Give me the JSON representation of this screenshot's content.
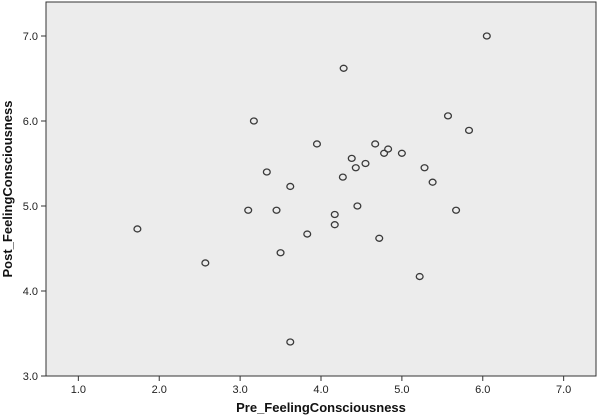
{
  "chart_data": {
    "type": "scatter",
    "title": "",
    "xlabel": "Pre_FeelingConsciousness",
    "ylabel": "Post_FeelingConsciousness",
    "xlim": [
      0.6,
      7.4
    ],
    "ylim": [
      3.0,
      7.4
    ],
    "xticks": [
      "1.0",
      "2.0",
      "3.0",
      "4.0",
      "5.0",
      "6.0",
      "7.0"
    ],
    "xtick_values": [
      1,
      2,
      3,
      4,
      5,
      6,
      7
    ],
    "yticks": [
      "3.0",
      "4.0",
      "5.0",
      "6.0",
      "7.0"
    ],
    "ytick_values": [
      3,
      4,
      5,
      6,
      7
    ],
    "grid": false,
    "legend": "none",
    "background_color": "#ececec",
    "marker_color": "#3a3a3a",
    "points": [
      {
        "x": 1.73,
        "y": 4.73
      },
      {
        "x": 2.57,
        "y": 4.33
      },
      {
        "x": 3.1,
        "y": 4.95
      },
      {
        "x": 3.17,
        "y": 6.0
      },
      {
        "x": 3.33,
        "y": 5.4
      },
      {
        "x": 3.45,
        "y": 4.95
      },
      {
        "x": 3.5,
        "y": 4.45
      },
      {
        "x": 3.62,
        "y": 5.23
      },
      {
        "x": 3.62,
        "y": 3.4
      },
      {
        "x": 3.83,
        "y": 4.67
      },
      {
        "x": 3.95,
        "y": 5.73
      },
      {
        "x": 4.17,
        "y": 4.9
      },
      {
        "x": 4.17,
        "y": 4.78
      },
      {
        "x": 4.27,
        "y": 5.34
      },
      {
        "x": 4.28,
        "y": 6.62
      },
      {
        "x": 4.38,
        "y": 5.56
      },
      {
        "x": 4.43,
        "y": 5.45
      },
      {
        "x": 4.45,
        "y": 5.0
      },
      {
        "x": 4.55,
        "y": 5.5
      },
      {
        "x": 4.67,
        "y": 5.73
      },
      {
        "x": 4.72,
        "y": 4.62
      },
      {
        "x": 4.78,
        "y": 5.62
      },
      {
        "x": 4.83,
        "y": 5.67
      },
      {
        "x": 5.0,
        "y": 5.62
      },
      {
        "x": 5.22,
        "y": 4.17
      },
      {
        "x": 5.28,
        "y": 5.45
      },
      {
        "x": 5.38,
        "y": 5.28
      },
      {
        "x": 5.57,
        "y": 6.06
      },
      {
        "x": 5.67,
        "y": 4.95
      },
      {
        "x": 5.83,
        "y": 5.89
      },
      {
        "x": 6.05,
        "y": 7.0
      }
    ]
  }
}
